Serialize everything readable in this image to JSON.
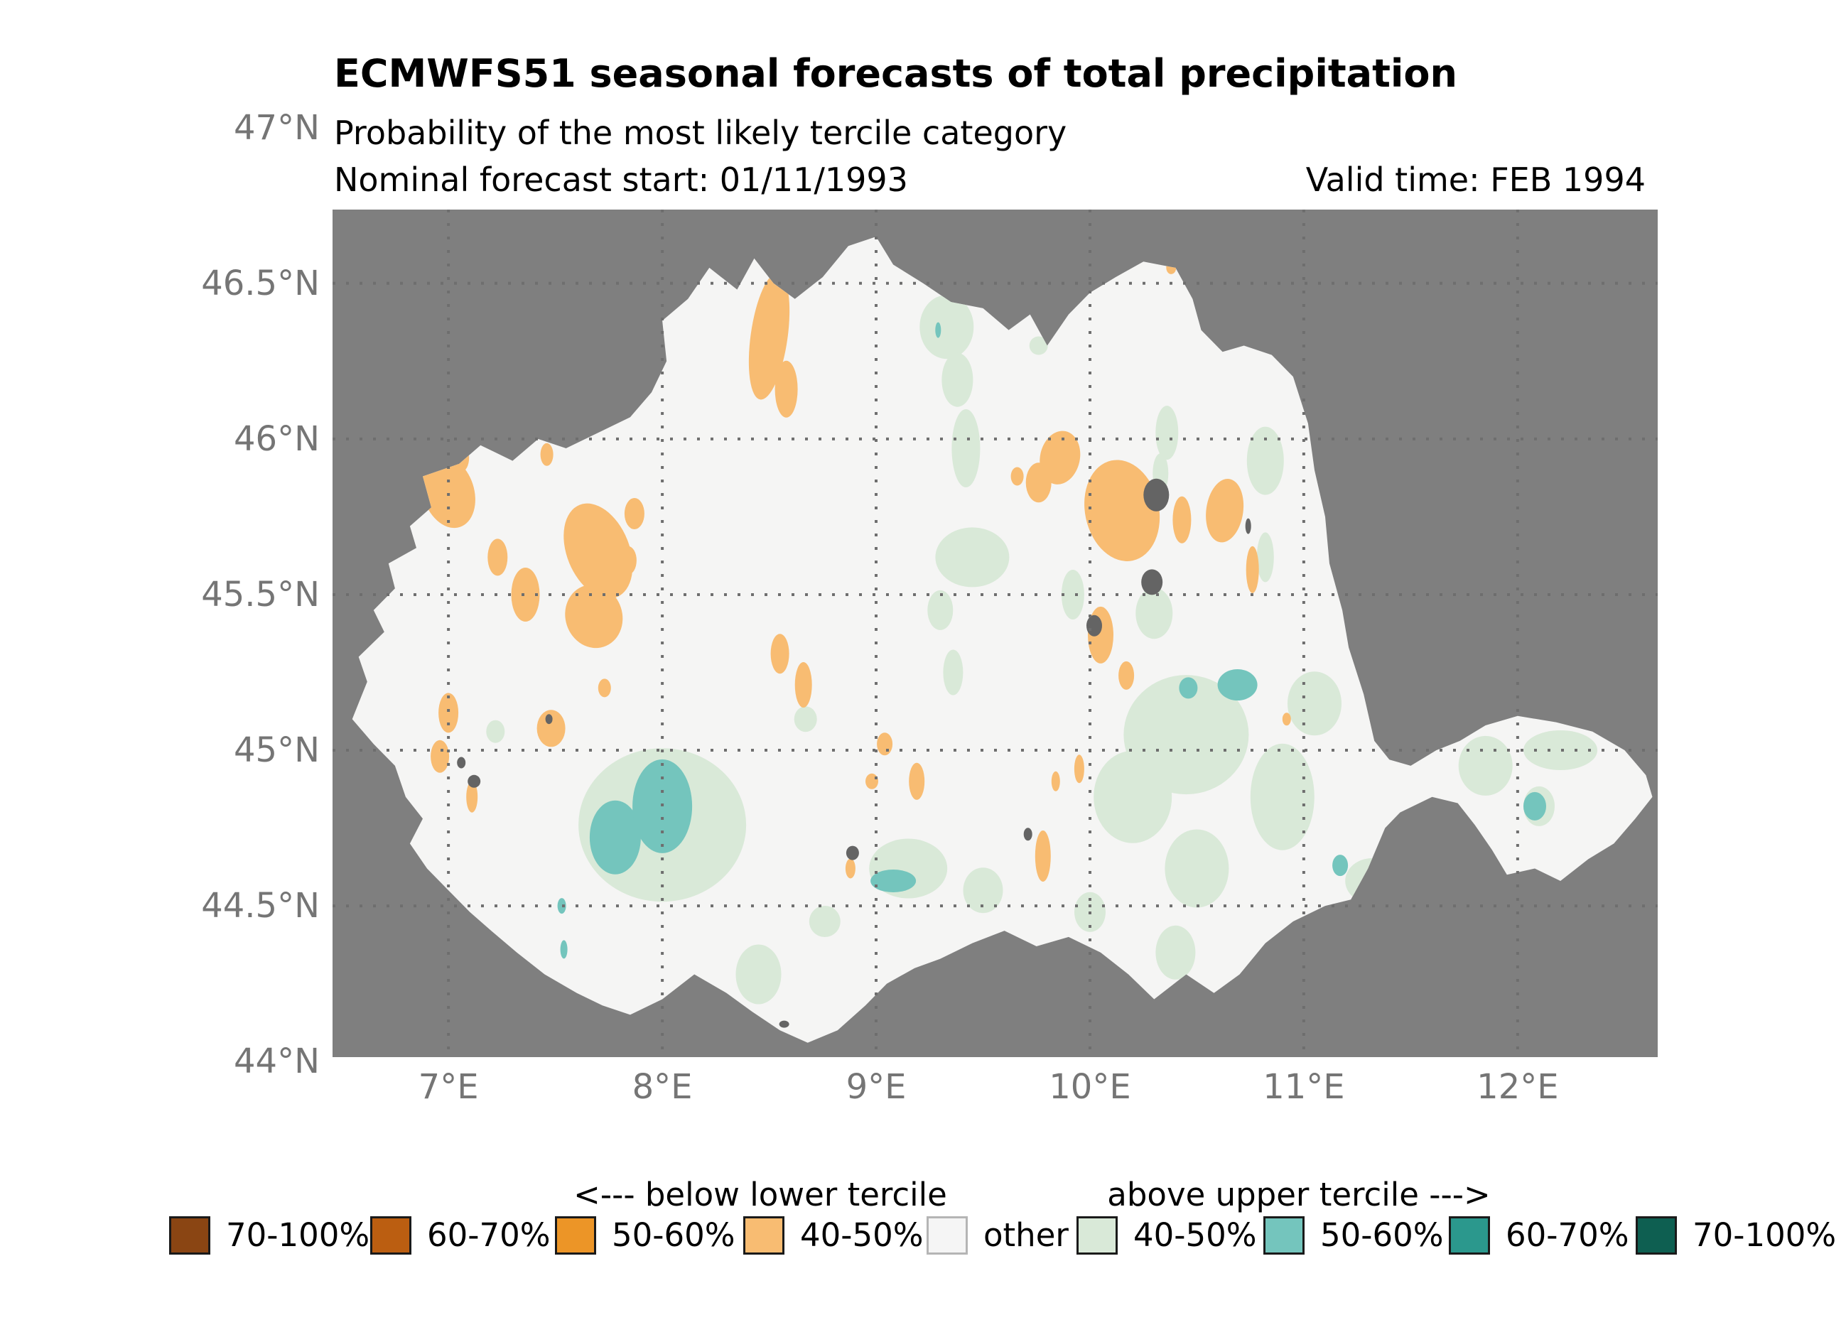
{
  "title": "ECMWFS51 seasonal forecasts of total precipitation",
  "subtitle": "Probability of the most likely tercile category",
  "forecast_start_label": "Nominal forecast start: 01/11/1993",
  "valid_time_label": "Valid time: FEB 1994",
  "map": {
    "extent": {
      "lon_min": 6.458,
      "lon_max": 12.655,
      "lat_min": 44.014,
      "lat_max": 46.737
    },
    "colors": {
      "outside": "#7f7f7f",
      "region": "#f5f5f4",
      "gridline": "#6e6e6e",
      "tick_text": "#757575",
      "below_40_50": "#f8bc72",
      "above_40_50": "#d9e9d8",
      "above_50_60": "#74c5bd",
      "missing": "#646464"
    },
    "lon_gridlines": [
      7,
      8,
      9,
      10,
      11,
      12
    ],
    "lat_gridlines": [
      46.5,
      46,
      45.5,
      45,
      44.5
    ],
    "x_ticks": [
      {
        "label": "7°E",
        "lon": 7
      },
      {
        "label": "8°E",
        "lon": 8
      },
      {
        "label": "9°E",
        "lon": 9
      },
      {
        "label": "10°E",
        "lon": 10
      },
      {
        "label": "11°E",
        "lon": 11
      },
      {
        "label": "12°E",
        "lon": 12
      }
    ],
    "y_ticks": [
      {
        "label": "47°N",
        "lat": 47
      },
      {
        "label": "46.5°N",
        "lat": 46.5
      },
      {
        "label": "46°N",
        "lat": 46
      },
      {
        "label": "45.5°N",
        "lat": 45.5
      },
      {
        "label": "45°N",
        "lat": 45
      },
      {
        "label": "44.5°N",
        "lat": 44.5
      },
      {
        "label": "44°N",
        "lat": 44
      }
    ],
    "region_outline": [
      [
        6.55,
        45.1
      ],
      [
        6.62,
        45.22
      ],
      [
        6.58,
        45.3
      ],
      [
        6.7,
        45.38
      ],
      [
        6.65,
        45.45
      ],
      [
        6.75,
        45.52
      ],
      [
        6.72,
        45.6
      ],
      [
        6.85,
        45.65
      ],
      [
        6.82,
        45.72
      ],
      [
        6.92,
        45.78
      ],
      [
        6.88,
        45.88
      ],
      [
        7.05,
        45.92
      ],
      [
        7.15,
        45.98
      ],
      [
        7.3,
        45.93
      ],
      [
        7.42,
        46.0
      ],
      [
        7.55,
        45.97
      ],
      [
        7.7,
        46.02
      ],
      [
        7.85,
        46.07
      ],
      [
        7.95,
        46.15
      ],
      [
        8.02,
        46.25
      ],
      [
        8.0,
        46.38
      ],
      [
        8.12,
        46.45
      ],
      [
        8.22,
        46.55
      ],
      [
        8.35,
        46.48
      ],
      [
        8.43,
        46.58
      ],
      [
        8.52,
        46.5
      ],
      [
        8.62,
        46.45
      ],
      [
        8.75,
        46.52
      ],
      [
        8.87,
        46.62
      ],
      [
        9.0,
        46.65
      ],
      [
        9.08,
        46.56
      ],
      [
        9.22,
        46.5
      ],
      [
        9.35,
        46.44
      ],
      [
        9.5,
        46.42
      ],
      [
        9.62,
        46.35
      ],
      [
        9.72,
        46.4
      ],
      [
        9.8,
        46.3
      ],
      [
        9.9,
        46.4
      ],
      [
        10.0,
        46.47
      ],
      [
        10.12,
        46.52
      ],
      [
        10.25,
        46.57
      ],
      [
        10.4,
        46.55
      ],
      [
        10.48,
        46.45
      ],
      [
        10.52,
        46.35
      ],
      [
        10.62,
        46.28
      ],
      [
        10.72,
        46.3
      ],
      [
        10.85,
        46.27
      ],
      [
        10.95,
        46.2
      ],
      [
        11.02,
        46.05
      ],
      [
        11.05,
        45.9
      ],
      [
        11.1,
        45.75
      ],
      [
        11.12,
        45.6
      ],
      [
        11.18,
        45.45
      ],
      [
        11.21,
        45.33
      ],
      [
        11.28,
        45.18
      ],
      [
        11.33,
        45.03
      ],
      [
        11.4,
        44.97
      ],
      [
        11.5,
        44.95
      ],
      [
        11.62,
        45.0
      ],
      [
        11.73,
        45.03
      ],
      [
        11.85,
        45.08
      ],
      [
        12.0,
        45.11
      ],
      [
        12.18,
        45.09
      ],
      [
        12.35,
        45.06
      ],
      [
        12.5,
        45.0
      ],
      [
        12.6,
        44.92
      ],
      [
        12.63,
        44.85
      ],
      [
        12.55,
        44.78
      ],
      [
        12.45,
        44.7
      ],
      [
        12.33,
        44.65
      ],
      [
        12.2,
        44.58
      ],
      [
        12.08,
        44.62
      ],
      [
        11.95,
        44.6
      ],
      [
        11.88,
        44.68
      ],
      [
        11.8,
        44.76
      ],
      [
        11.72,
        44.83
      ],
      [
        11.6,
        44.85
      ],
      [
        11.45,
        44.8
      ],
      [
        11.38,
        44.75
      ],
      [
        11.3,
        44.62
      ],
      [
        11.22,
        44.52
      ],
      [
        11.1,
        44.5
      ],
      [
        10.95,
        44.45
      ],
      [
        10.82,
        44.38
      ],
      [
        10.7,
        44.28
      ],
      [
        10.58,
        44.22
      ],
      [
        10.45,
        44.28
      ],
      [
        10.3,
        44.2
      ],
      [
        10.18,
        44.28
      ],
      [
        10.05,
        44.35
      ],
      [
        9.9,
        44.4
      ],
      [
        9.75,
        44.37
      ],
      [
        9.6,
        44.42
      ],
      [
        9.45,
        44.38
      ],
      [
        9.3,
        44.33
      ],
      [
        9.18,
        44.3
      ],
      [
        9.05,
        44.25
      ],
      [
        8.95,
        44.18
      ],
      [
        8.82,
        44.1
      ],
      [
        8.68,
        44.06
      ],
      [
        8.55,
        44.1
      ],
      [
        8.42,
        44.16
      ],
      [
        8.3,
        44.22
      ],
      [
        8.15,
        44.28
      ],
      [
        8.0,
        44.2
      ],
      [
        7.85,
        44.15
      ],
      [
        7.72,
        44.18
      ],
      [
        7.6,
        44.22
      ],
      [
        7.45,
        44.28
      ],
      [
        7.32,
        44.35
      ],
      [
        7.2,
        44.42
      ],
      [
        7.1,
        44.48
      ],
      [
        7.0,
        44.55
      ],
      [
        6.9,
        44.62
      ],
      [
        6.82,
        44.7
      ],
      [
        6.88,
        44.78
      ],
      [
        6.8,
        44.85
      ],
      [
        6.75,
        44.95
      ],
      [
        6.65,
        45.02
      ]
    ],
    "patches": {
      "above_40_50": [
        [
          9.33,
          46.36,
          38,
          45,
          0
        ],
        [
          9.38,
          46.19,
          22,
          38,
          0
        ],
        [
          9.42,
          45.97,
          20,
          55,
          0
        ],
        [
          9.76,
          46.3,
          13,
          13,
          0
        ],
        [
          10.36,
          46.02,
          16,
          38,
          0
        ],
        [
          10.33,
          45.89,
          11,
          28,
          0
        ],
        [
          10.82,
          45.93,
          26,
          48,
          0
        ],
        [
          9.45,
          45.62,
          52,
          42,
          0
        ],
        [
          9.3,
          45.45,
          18,
          28,
          0
        ],
        [
          9.36,
          45.25,
          14,
          32,
          0
        ],
        [
          8.67,
          45.1,
          16,
          18,
          0
        ],
        [
          7.22,
          45.06,
          13,
          16,
          0
        ],
        [
          8.0,
          44.76,
          118,
          108,
          0
        ],
        [
          8.45,
          44.28,
          32,
          42,
          0
        ],
        [
          8.76,
          44.45,
          22,
          22,
          0
        ],
        [
          9.15,
          44.62,
          55,
          42,
          0
        ],
        [
          9.5,
          44.55,
          28,
          32,
          0
        ],
        [
          10.45,
          45.05,
          88,
          84,
          0
        ],
        [
          10.2,
          44.85,
          55,
          65,
          0
        ],
        [
          10.5,
          44.62,
          45,
          55,
          0
        ],
        [
          10.9,
          44.85,
          45,
          75,
          0
        ],
        [
          11.05,
          45.15,
          38,
          45,
          0
        ],
        [
          11.32,
          44.58,
          38,
          32,
          0
        ],
        [
          11.85,
          44.95,
          38,
          42,
          0
        ],
        [
          12.2,
          45.0,
          52,
          28,
          0
        ],
        [
          12.1,
          44.82,
          22,
          28,
          0
        ],
        [
          10.4,
          44.35,
          28,
          38,
          0
        ],
        [
          10.0,
          44.48,
          22,
          28,
          0
        ],
        [
          9.92,
          45.5,
          16,
          35,
          0
        ],
        [
          10.3,
          45.44,
          26,
          36,
          0
        ],
        [
          10.82,
          45.62,
          12,
          35,
          0
        ]
      ],
      "above_50_60": [
        [
          7.78,
          44.72,
          36,
          52,
          0
        ],
        [
          8.0,
          44.82,
          42,
          66,
          0
        ],
        [
          7.53,
          44.5,
          6,
          11,
          0
        ],
        [
          7.54,
          44.36,
          5,
          13,
          0
        ],
        [
          9.08,
          44.58,
          32,
          16,
          0
        ],
        [
          10.46,
          45.2,
          13,
          15,
          0
        ],
        [
          10.69,
          45.21,
          28,
          22,
          0
        ],
        [
          11.17,
          44.63,
          11,
          15,
          0
        ],
        [
          12.08,
          44.82,
          16,
          20,
          0
        ],
        [
          9.29,
          46.35,
          4,
          11,
          0
        ]
      ],
      "below_40_50": [
        [
          8.5,
          46.33,
          26,
          90,
          8
        ],
        [
          8.58,
          46.16,
          16,
          40,
          0
        ],
        [
          7.0,
          45.83,
          36,
          52,
          -18
        ],
        [
          7.06,
          45.94,
          11,
          20,
          0
        ],
        [
          7.46,
          45.95,
          9,
          16,
          0
        ],
        [
          7.7,
          45.64,
          44,
          70,
          -22
        ],
        [
          7.87,
          45.76,
          14,
          22,
          0
        ],
        [
          7.84,
          45.61,
          12,
          20,
          0
        ],
        [
          7.23,
          45.62,
          14,
          26,
          0
        ],
        [
          7.36,
          45.5,
          20,
          38,
          0
        ],
        [
          7.68,
          45.43,
          40,
          45,
          -18
        ],
        [
          7.48,
          45.07,
          20,
          26,
          0
        ],
        [
          7.73,
          45.2,
          9,
          13,
          0
        ],
        [
          7.0,
          45.12,
          14,
          28,
          0
        ],
        [
          6.96,
          44.98,
          13,
          23,
          0
        ],
        [
          7.11,
          44.85,
          8,
          22,
          0
        ],
        [
          8.55,
          45.31,
          13,
          28,
          0
        ],
        [
          8.66,
          45.21,
          12,
          32,
          0
        ],
        [
          9.04,
          45.02,
          11,
          16,
          0
        ],
        [
          9.19,
          44.9,
          11,
          26,
          0
        ],
        [
          8.98,
          44.9,
          9,
          11,
          0
        ],
        [
          8.88,
          44.62,
          7,
          14,
          0
        ],
        [
          9.86,
          45.94,
          28,
          38,
          12
        ],
        [
          9.76,
          45.86,
          18,
          28,
          0
        ],
        [
          9.66,
          45.88,
          9,
          13,
          0
        ],
        [
          10.15,
          45.77,
          52,
          72,
          -12
        ],
        [
          10.43,
          45.74,
          13,
          33,
          0
        ],
        [
          10.63,
          45.77,
          26,
          45,
          8
        ],
        [
          10.76,
          45.58,
          9,
          33,
          0
        ],
        [
          10.17,
          45.24,
          11,
          20,
          0
        ],
        [
          10.05,
          45.37,
          18,
          40,
          0
        ],
        [
          9.95,
          44.94,
          7,
          20,
          0
        ],
        [
          9.84,
          44.9,
          6,
          14,
          0
        ],
        [
          9.78,
          44.66,
          11,
          36,
          0
        ],
        [
          10.92,
          45.1,
          6,
          9,
          0
        ],
        [
          10.38,
          46.55,
          7,
          9,
          0
        ]
      ],
      "missing": [
        [
          10.31,
          45.82,
          18,
          23,
          0
        ],
        [
          10.29,
          45.54,
          15,
          18,
          0
        ],
        [
          10.02,
          45.4,
          11,
          15,
          0
        ],
        [
          9.71,
          44.73,
          6,
          9,
          0
        ],
        [
          7.06,
          44.96,
          6,
          8,
          0
        ],
        [
          7.12,
          44.9,
          9,
          9,
          0
        ],
        [
          8.89,
          44.67,
          9,
          10,
          0
        ],
        [
          7.47,
          45.1,
          5,
          7,
          0
        ],
        [
          10.74,
          45.72,
          4,
          11,
          0
        ],
        [
          8.57,
          44.12,
          7,
          5,
          0
        ]
      ]
    }
  },
  "legend": {
    "below_header": "<--- below lower tercile",
    "above_header": "above upper tercile --->",
    "items": [
      {
        "label": "70-100%",
        "color": "#8a4513",
        "border": "#1a1a1a",
        "side": "below"
      },
      {
        "label": "60-70%",
        "color": "#bb5e11",
        "border": "#1a1a1a",
        "side": "below"
      },
      {
        "label": "50-60%",
        "color": "#ec9527",
        "border": "#1a1a1a",
        "side": "below"
      },
      {
        "label": "40-50%",
        "color": "#f8bc72",
        "border": "#1a1a1a",
        "side": "below"
      },
      {
        "label": "other",
        "color": "#f5f5f5",
        "border": "#b5b5b5",
        "side": "other"
      },
      {
        "label": "40-50%",
        "color": "#d9e9d8",
        "border": "#1a1a1a",
        "side": "above"
      },
      {
        "label": "50-60%",
        "color": "#74c5bd",
        "border": "#1a1a1a",
        "side": "above"
      },
      {
        "label": "60-70%",
        "color": "#2b988d",
        "border": "#1a1a1a",
        "side": "above"
      },
      {
        "label": "70-100%",
        "color": "#0e5f51",
        "border": "#1a1a1a",
        "side": "above"
      }
    ]
  }
}
